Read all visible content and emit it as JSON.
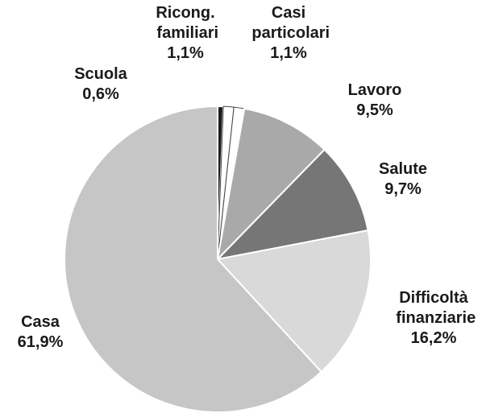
{
  "chart_data": {
    "type": "pie",
    "categories": [
      "Scuola",
      "Ricong. familiari",
      "Casi particolari",
      "Lavoro",
      "Salute",
      "Difficoltà finanziarie",
      "Casa"
    ],
    "values": [
      0.6,
      1.1,
      1.1,
      9.5,
      9.7,
      16.2,
      61.9
    ],
    "value_labels": [
      "0,6%",
      "1,1%",
      "1,1%",
      "9,5%",
      "9,7%",
      "16,2%",
      "61,9%"
    ],
    "colors": [
      "#1e1e1e",
      "#ffffff",
      "#ffffff",
      "#a9a9a9",
      "#767676",
      "#d9d9d9",
      "#c6c6c6"
    ]
  }
}
